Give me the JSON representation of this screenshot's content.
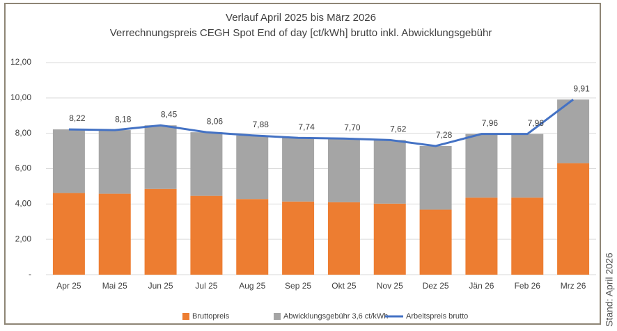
{
  "chart_data": {
    "type": "bar",
    "title": "Verlauf April 2025 bis März 2026",
    "subtitle": "Verrechnungspreis CEGH Spot End of day [ct/kWh] brutto inkl. Abwicklungsgebühr",
    "annotation": "Stand: April 2026",
    "categories": [
      "Apr 25",
      "Mai 25",
      "Jun 25",
      "Jul 25",
      "Aug 25",
      "Sep 25",
      "Okt 25",
      "Nov 25",
      "Dez 25",
      "Jän 26",
      "Feb 26",
      "Mrz 26"
    ],
    "stacked": true,
    "series": [
      {
        "name": "Bruttopreis",
        "type": "bar",
        "color": "#ed7d31",
        "values": [
          4.62,
          4.58,
          4.85,
          4.46,
          4.28,
          4.14,
          4.1,
          4.02,
          3.68,
          4.36,
          4.36,
          6.31
        ]
      },
      {
        "name": "Abwicklungsgebühr 3,6 ct/kWh",
        "type": "bar",
        "color": "#a5a5a5",
        "values": [
          3.6,
          3.6,
          3.6,
          3.6,
          3.6,
          3.6,
          3.6,
          3.6,
          3.6,
          3.6,
          3.6,
          3.6
        ]
      },
      {
        "name": "Arbeitspreis brutto",
        "type": "line",
        "color": "#4472c4",
        "values": [
          8.22,
          8.18,
          8.45,
          8.06,
          7.88,
          7.74,
          7.7,
          7.62,
          7.28,
          7.96,
          7.96,
          9.91
        ],
        "value_labels": [
          "8,22",
          "8,18",
          "8,45",
          "8,06",
          "7,88",
          "7,74",
          "7,70",
          "7,62",
          "7,28",
          "7,96",
          "7,96",
          "9,91"
        ]
      }
    ],
    "ylim": [
      0,
      12
    ],
    "yticks": [
      {
        "value": 0,
        "label": "-"
      },
      {
        "value": 2,
        "label": "2,00"
      },
      {
        "value": 4,
        "label": "4,00"
      },
      {
        "value": 6,
        "label": "6,00"
      },
      {
        "value": 8,
        "label": "8,00"
      },
      {
        "value": 10,
        "label": "10,00"
      },
      {
        "value": 12,
        "label": "12,00"
      }
    ],
    "grid": true,
    "legend": "bottom"
  }
}
